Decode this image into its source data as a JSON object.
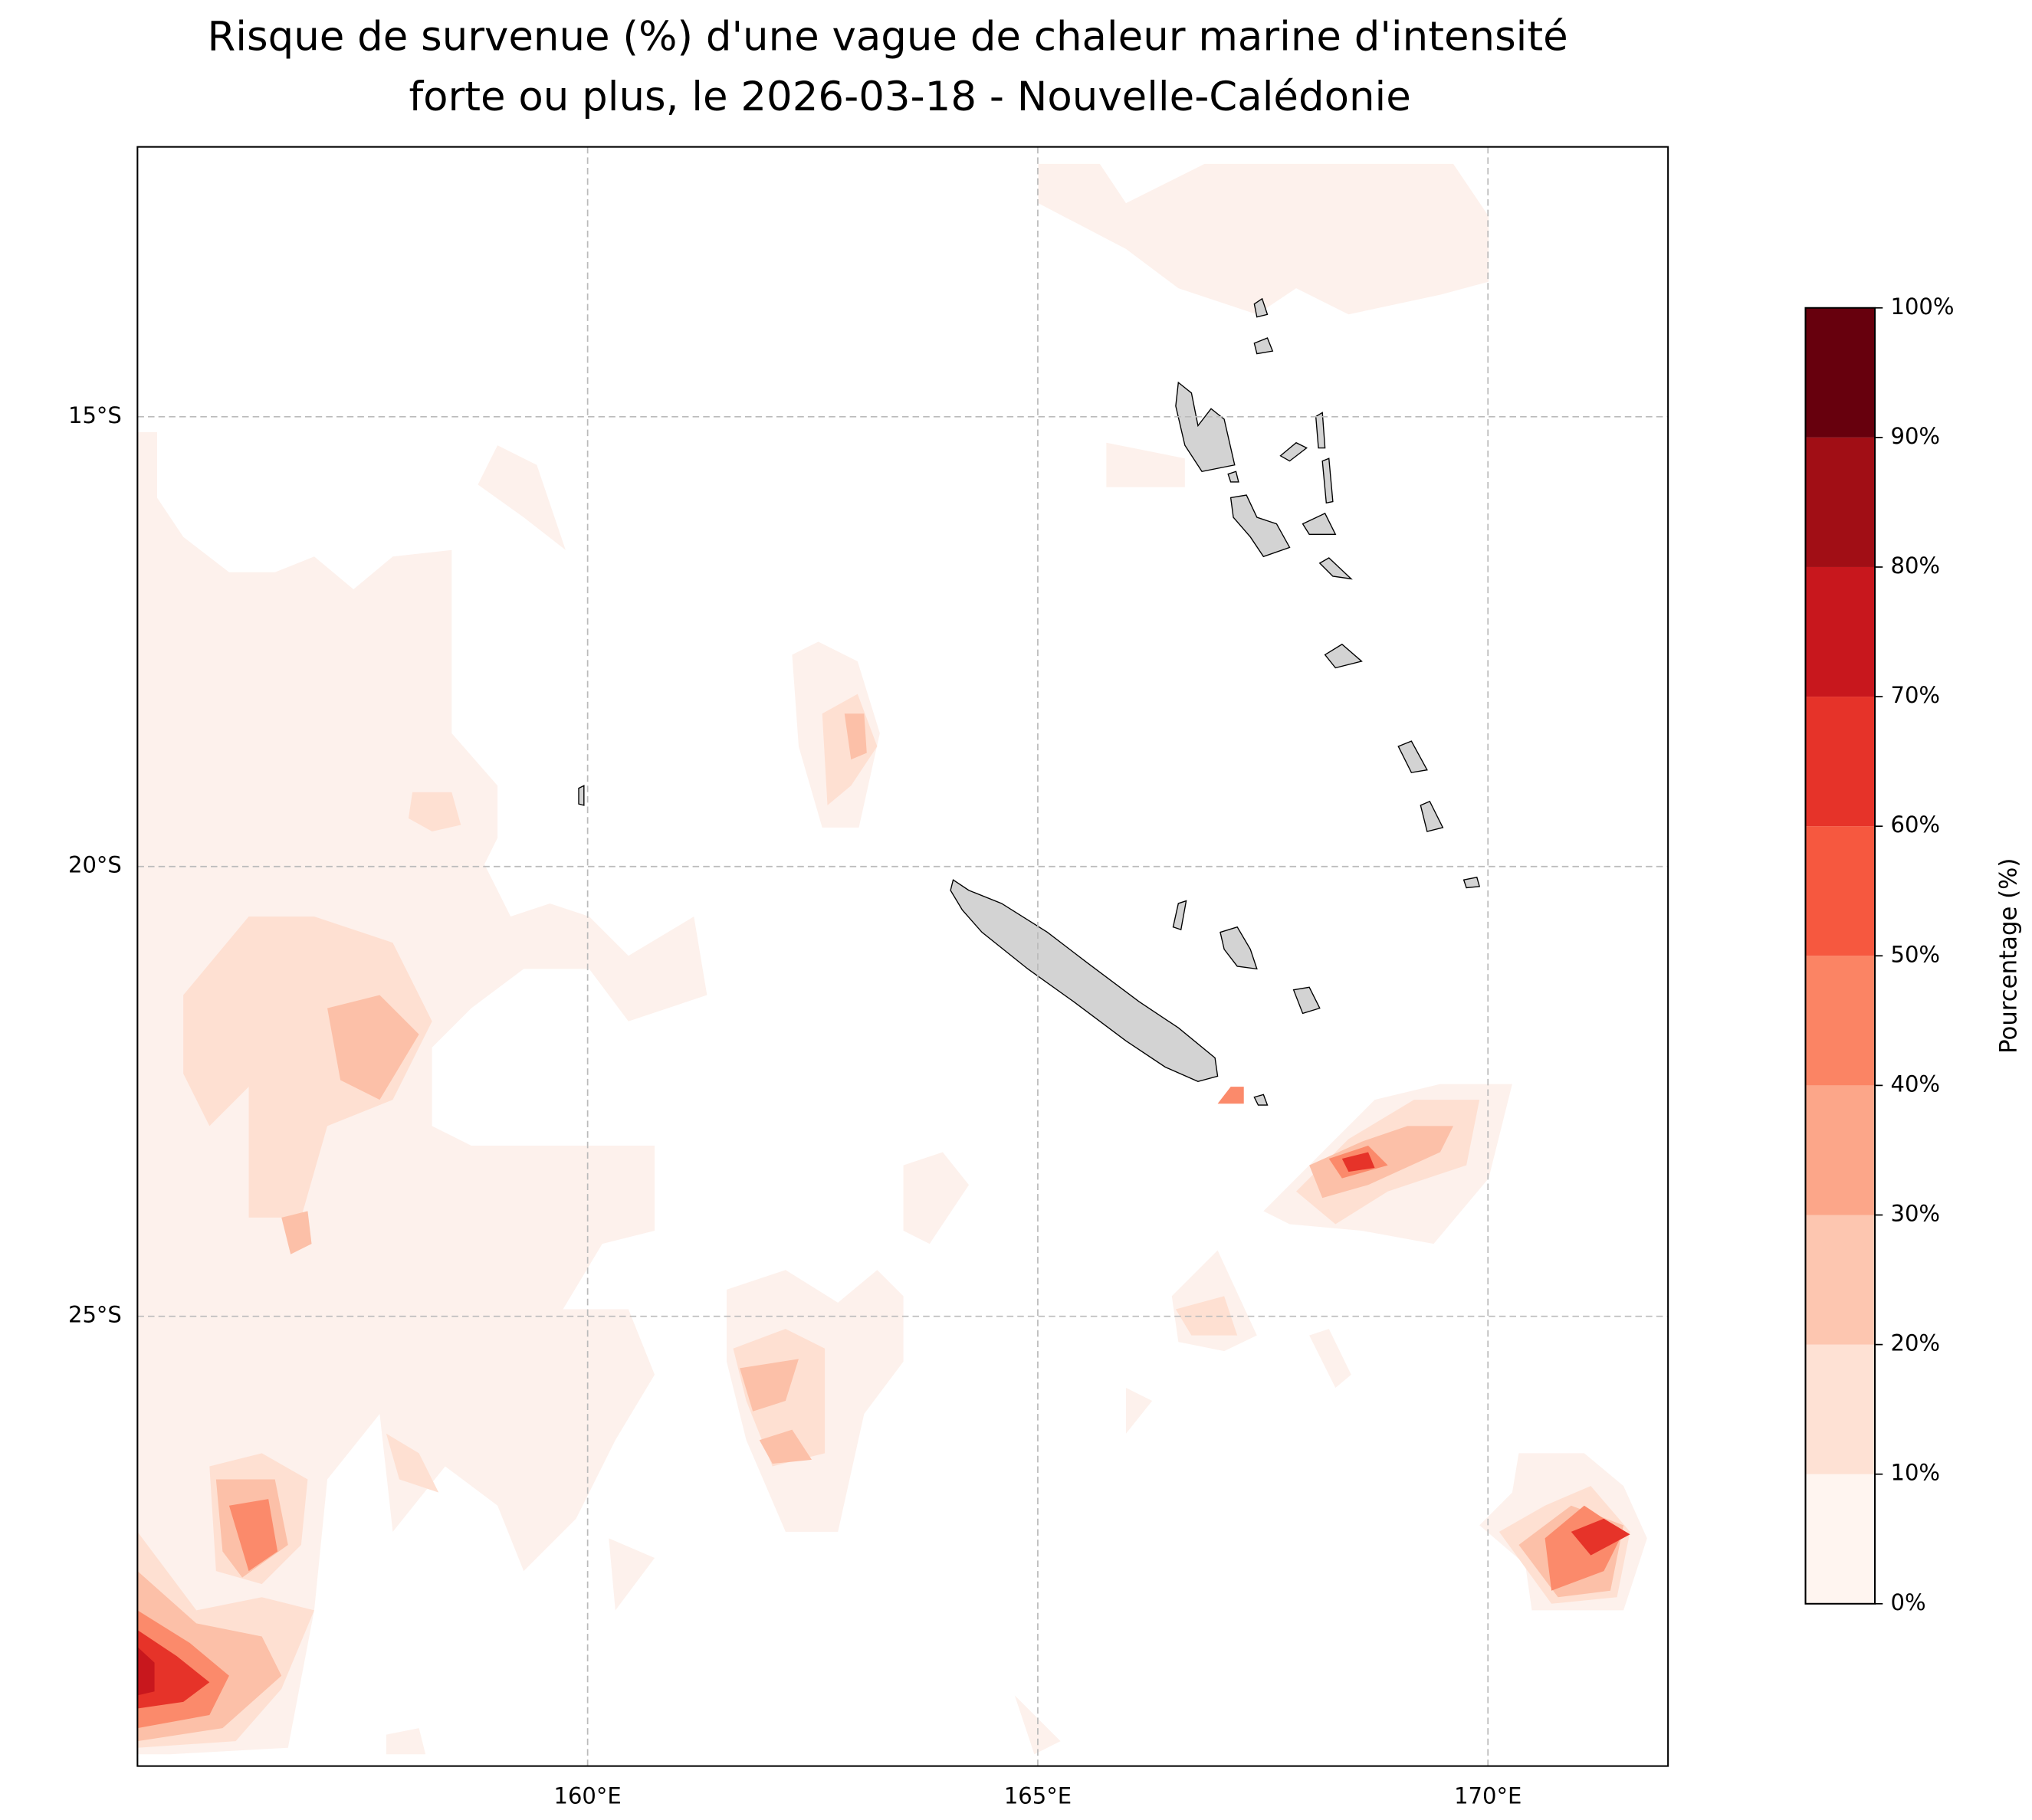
{
  "chart_data": {
    "type": "contour-map",
    "title": [
      "Risque de survenue (%) d'une vague de chaleur marine d'intensité",
      "forte ou plus, le 2026-03-18 - Nouvelle-Calédonie"
    ],
    "xlim": [
      155,
      172
    ],
    "ylim": [
      -30,
      -12
    ],
    "xticks": [
      {
        "value": 160,
        "label": "160°E"
      },
      {
        "value": 165,
        "label": "165°E"
      },
      {
        "value": 170,
        "label": "170°E"
      }
    ],
    "yticks": [
      {
        "value": -15,
        "label": "15°S"
      },
      {
        "value": -20,
        "label": "20°S"
      },
      {
        "value": -25,
        "label": "25°S"
      }
    ],
    "grid": true,
    "land_color": "#d3d3d3",
    "colorbar": {
      "label": "Pourcentage (%)",
      "ticks": [
        {
          "value": 0,
          "label": "0%"
        },
        {
          "value": 10,
          "label": "10%"
        },
        {
          "value": 20,
          "label": "20%"
        },
        {
          "value": 30,
          "label": "30%"
        },
        {
          "value": 40,
          "label": "40%"
        },
        {
          "value": 50,
          "label": "50%"
        },
        {
          "value": 60,
          "label": "60%"
        },
        {
          "value": 70,
          "label": "70%"
        },
        {
          "value": 80,
          "label": "80%"
        },
        {
          "value": 90,
          "label": "90%"
        },
        {
          "value": 100,
          "label": "100%"
        }
      ],
      "colors": [
        "#fff5f0",
        "#fee1d4",
        "#fdc6b0",
        "#fca689",
        "#fb8464",
        "#f6583f",
        "#e63329",
        "#c8171d",
        "#a10e15",
        "#67000d"
      ]
    }
  }
}
